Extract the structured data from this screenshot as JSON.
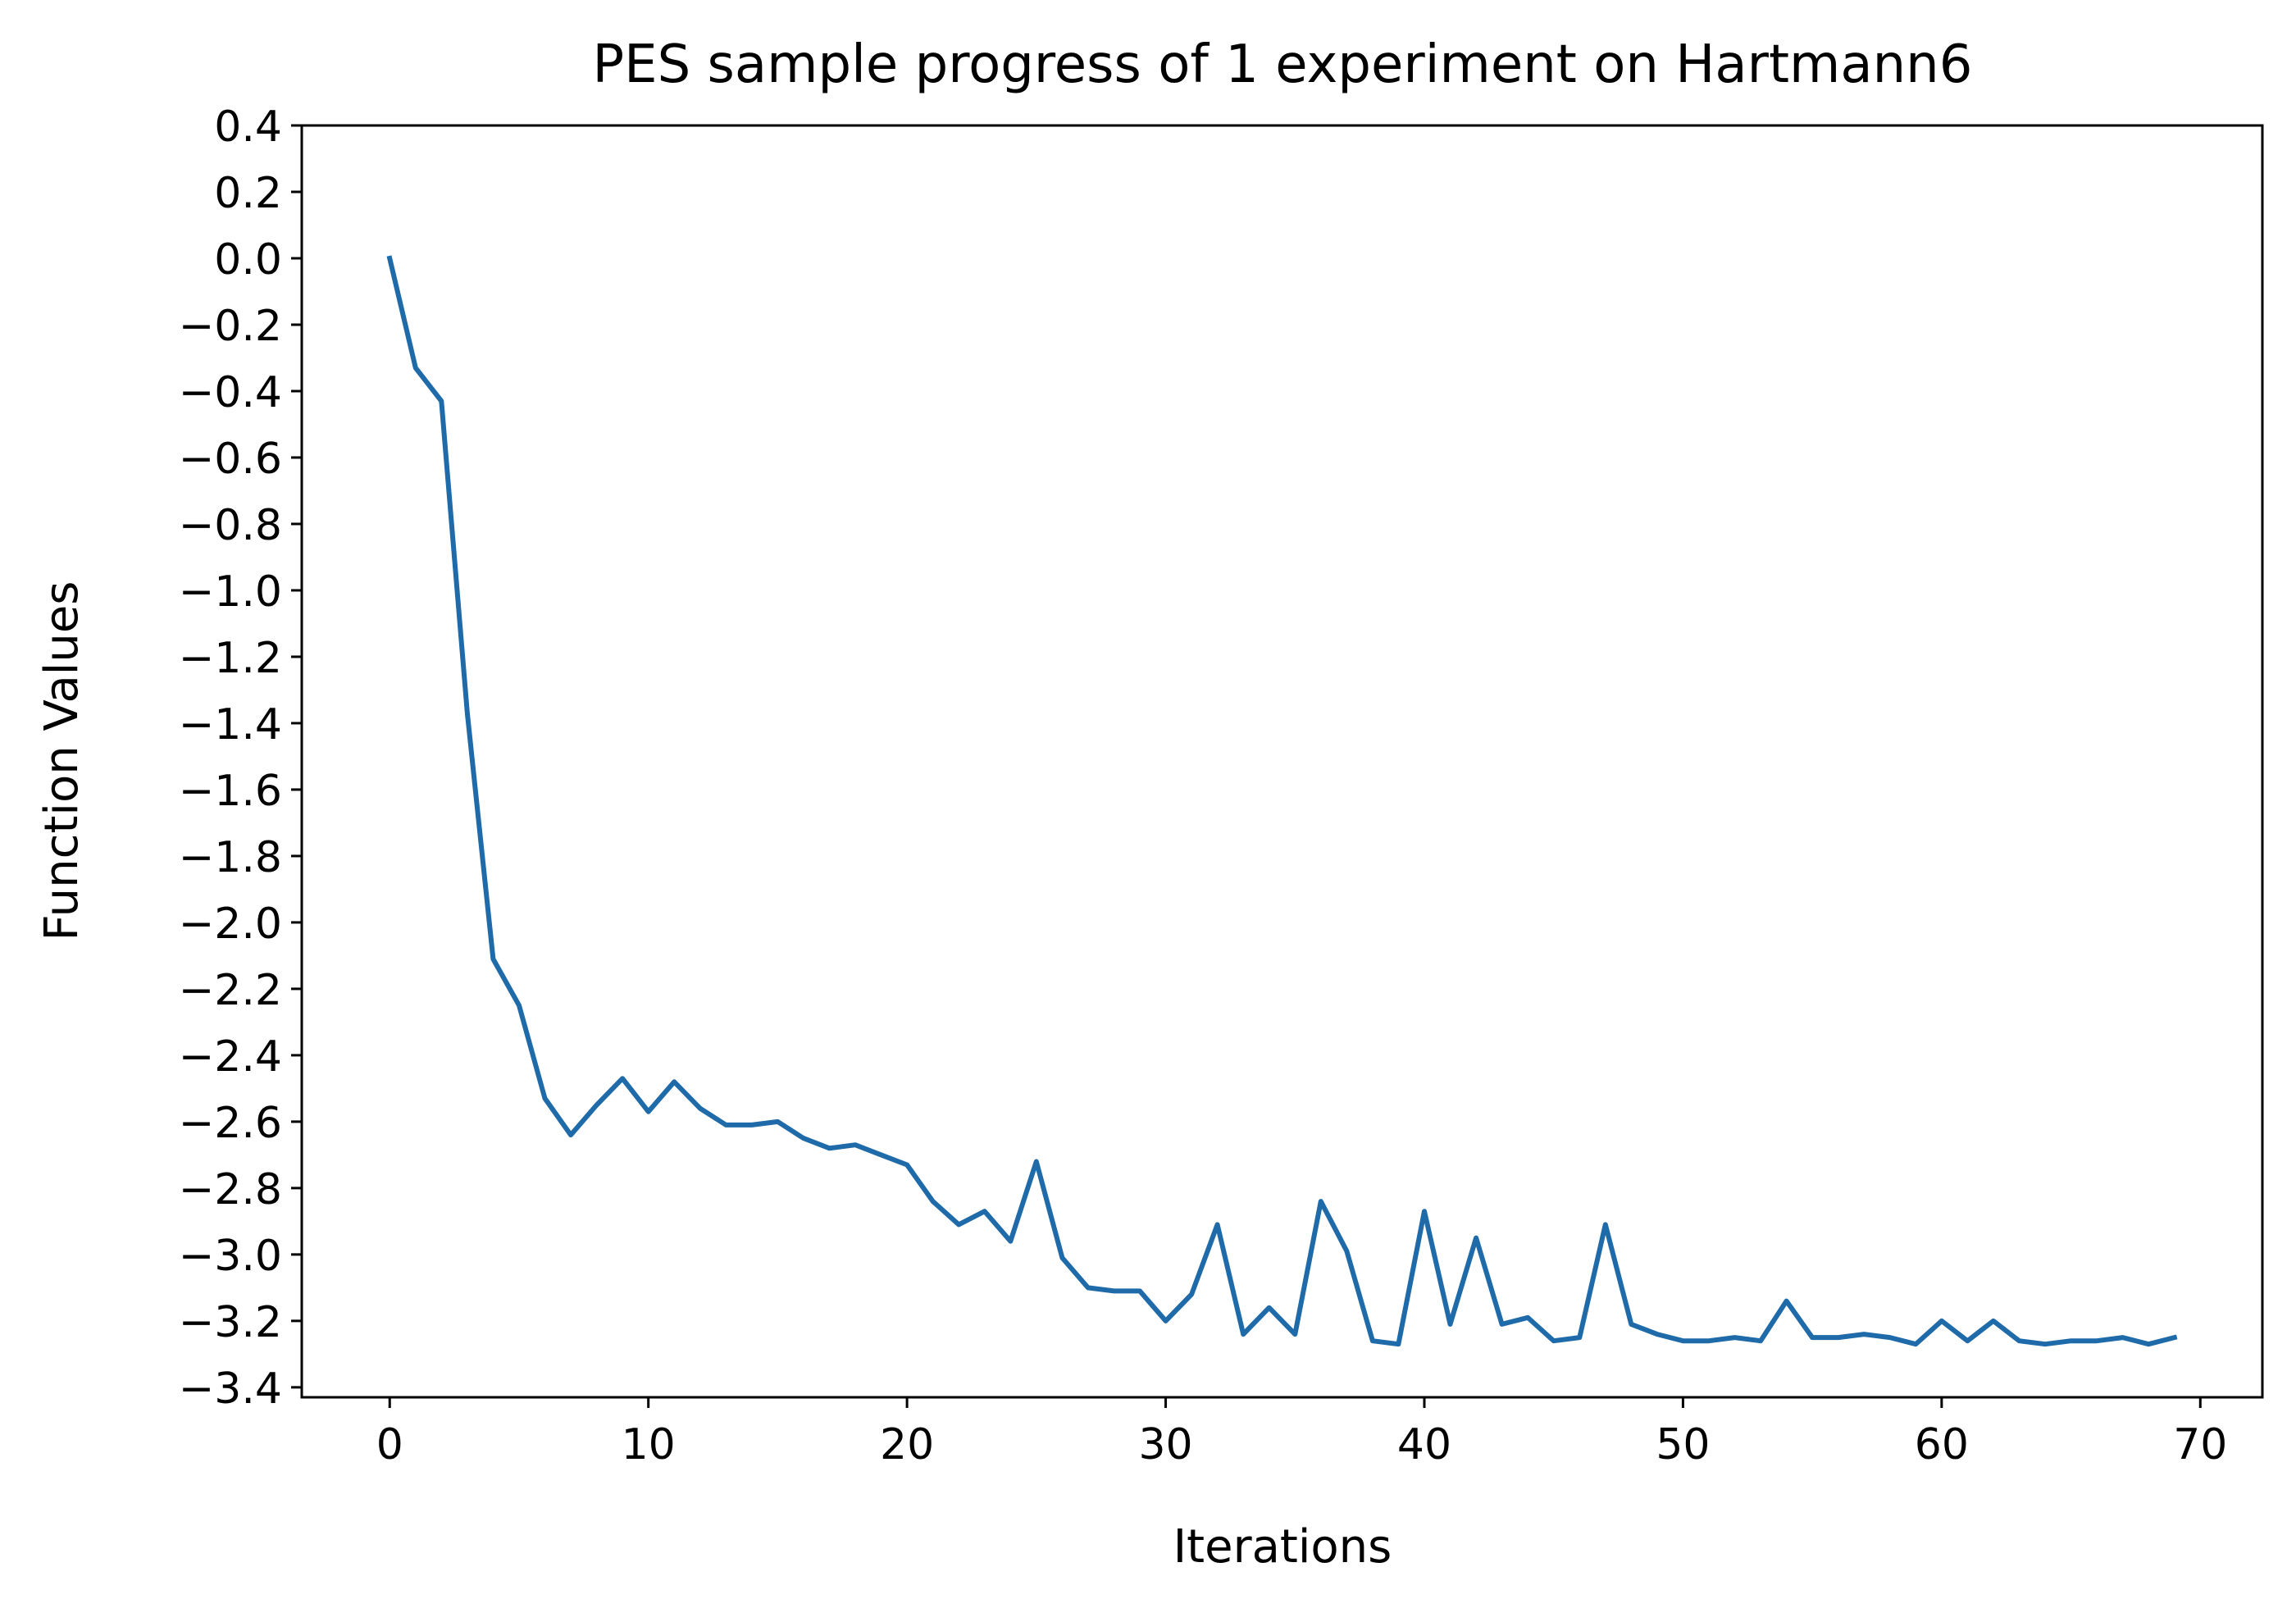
{
  "chart_data": {
    "type": "line",
    "title": "PES sample progress of 1 experiment on Hartmann6",
    "xlabel": "Iterations",
    "ylabel": "Function Values",
    "xlim": [
      -3.4,
      72.4
    ],
    "ylim": [
      -3.43,
      0.4
    ],
    "x_ticks": [
      0,
      10,
      20,
      30,
      40,
      50,
      60,
      70
    ],
    "y_ticks": [
      0.4,
      0.2,
      0.0,
      -0.2,
      -0.4,
      -0.6,
      -0.8,
      -1.0,
      -1.2,
      -1.4,
      -1.6,
      -1.8,
      -2.0,
      -2.2,
      -2.4,
      -2.6,
      -2.8,
      -3.0,
      -3.2,
      -3.4
    ],
    "grid": false,
    "series_color": "#1f6aa8",
    "series": [
      {
        "x": [
          0,
          1,
          2,
          3,
          4,
          5,
          6,
          7,
          8,
          9,
          10,
          11,
          12,
          13,
          14,
          15,
          16,
          17,
          18,
          19,
          20,
          21,
          22,
          23,
          24,
          25,
          26,
          27,
          28,
          29,
          30,
          31,
          32,
          33,
          34,
          35,
          36,
          37,
          38,
          39,
          40,
          41,
          42,
          43,
          44,
          45,
          46,
          47,
          48,
          49,
          50,
          51,
          52,
          53,
          54,
          55,
          56,
          57,
          58,
          59,
          60,
          61,
          62,
          63,
          64,
          65,
          66,
          67,
          68,
          69
        ],
        "values": [
          0.0,
          -0.33,
          -0.43,
          -1.37,
          -2.11,
          -2.25,
          -2.53,
          -2.64,
          -2.55,
          -2.47,
          -2.57,
          -2.48,
          -2.56,
          -2.61,
          -2.61,
          -2.6,
          -2.65,
          -2.68,
          -2.67,
          -2.7,
          -2.73,
          -2.84,
          -2.91,
          -2.87,
          -2.96,
          -2.72,
          -3.01,
          -3.1,
          -3.11,
          -3.11,
          -3.2,
          -3.12,
          -2.91,
          -3.24,
          -3.16,
          -3.24,
          -2.84,
          -2.99,
          -3.26,
          -3.27,
          -2.87,
          -3.21,
          -2.95,
          -3.21,
          -3.19,
          -3.26,
          -3.25,
          -2.91,
          -3.21,
          -3.24,
          -3.26,
          -3.26,
          -3.25,
          -3.26,
          -3.14,
          -3.25,
          -3.25,
          -3.24,
          -3.25,
          -3.27,
          -3.2,
          -3.26,
          -3.2,
          -3.26,
          -3.27,
          -3.26,
          -3.26,
          -3.25,
          -3.27,
          -3.25
        ]
      }
    ]
  }
}
